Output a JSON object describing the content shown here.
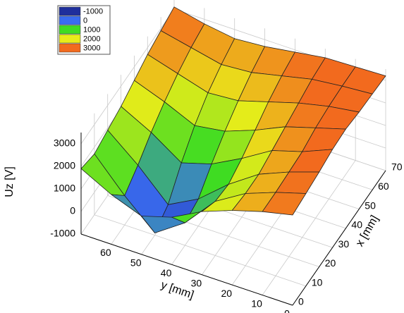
{
  "chart_data": {
    "type": "surface3d",
    "title": "",
    "xlabel": "y [mm]",
    "ylabel": "x [mm]",
    "zlabel": "Uz [V]",
    "x_axis": {
      "label": "y [mm]",
      "range": [
        0,
        70
      ],
      "ticks": [
        "0",
        "10",
        "20",
        "30",
        "40",
        "50",
        "60"
      ]
    },
    "y_axis": {
      "label": "x [mm]",
      "range": [
        0,
        70
      ],
      "ticks": [
        "0",
        "10",
        "20",
        "30",
        "40",
        "50",
        "60",
        "70"
      ]
    },
    "z_axis": {
      "label": "Uz [V]",
      "range": [
        -1000,
        3500
      ],
      "ticks": [
        "-1000",
        "0",
        "1000",
        "2000",
        "3000"
      ]
    },
    "grid": true,
    "legend": {
      "position": "top-left",
      "entries": [
        {
          "label": "-1000",
          "color": "#1f2f9c"
        },
        {
          "label": "0",
          "color": "#3a6cf0"
        },
        {
          "label": "1000",
          "color": "#3fdc22"
        },
        {
          "label": "2000",
          "color": "#e8ec1a"
        },
        {
          "label": "3000",
          "color": "#f26a1e"
        }
      ]
    },
    "surface": {
      "y_mm": [
        0,
        10,
        20,
        30,
        40,
        50,
        60,
        70
      ],
      "x_mm": [
        0,
        10,
        20,
        30,
        40,
        50,
        60,
        70
      ],
      "uz_V": [
        [
          3000,
          3100,
          3200,
          3350,
          3400,
          3300,
          3250,
          3200
        ],
        [
          2700,
          2700,
          2750,
          2800,
          3000,
          3100,
          3150,
          3150
        ],
        [
          2300,
          2200,
          2200,
          2400,
          2600,
          2800,
          3000,
          3100
        ],
        [
          1800,
          1400,
          1300,
          1600,
          2000,
          2400,
          2700,
          2900
        ],
        [
          1100,
          0,
          200,
          900,
          1500,
          2000,
          2400,
          2700
        ],
        [
          700,
          -900,
          -500,
          500,
          1300,
          1900,
          2300,
          2600
        ],
        [
          1200,
          300,
          800,
          1400,
          1900,
          2300,
          2600,
          2800
        ],
        [
          1900,
          1700,
          1900,
          2100,
          2400,
          2700,
          2900,
          3100
        ]
      ]
    }
  }
}
